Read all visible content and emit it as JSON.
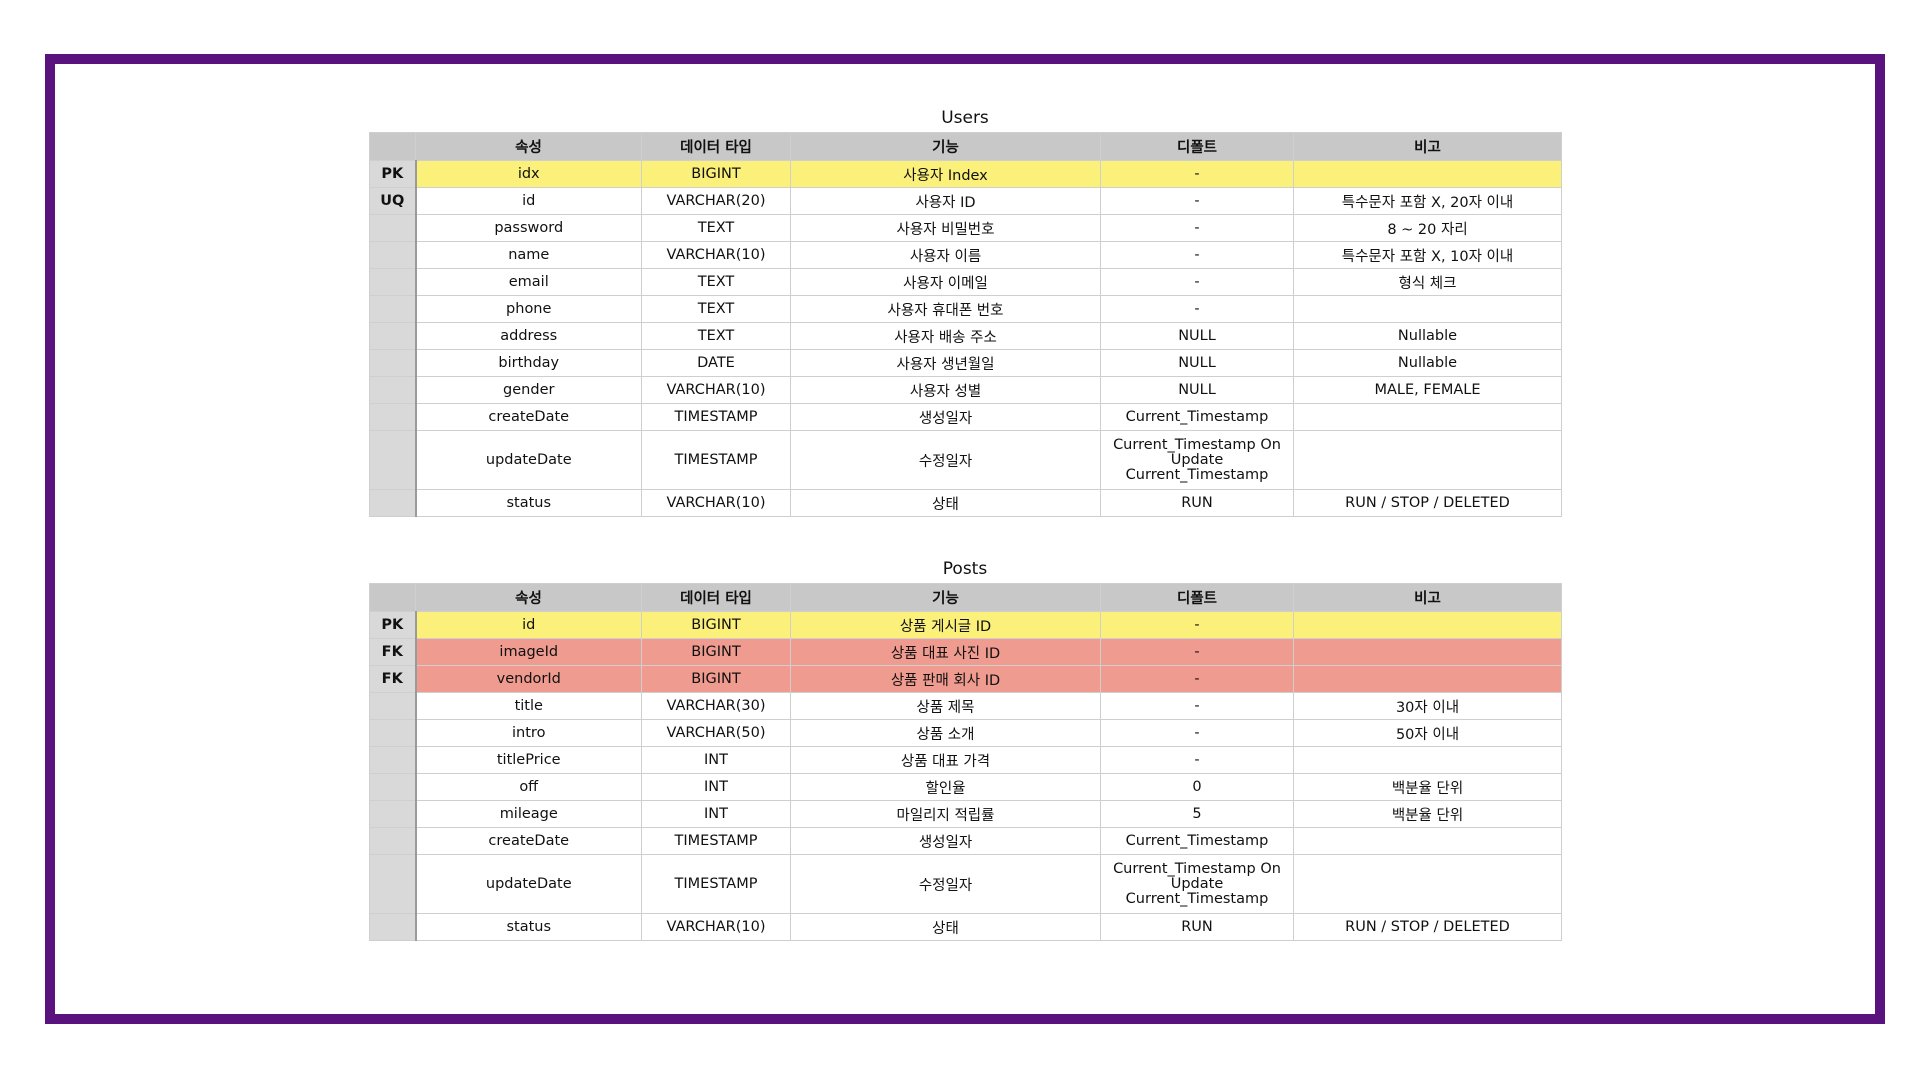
{
  "headers": [
    "속성",
    "데이터 타입",
    "기능",
    "디폴트",
    "비고"
  ],
  "users": {
    "title": "Users",
    "rows": [
      {
        "key": "PK",
        "attr": "idx",
        "type": "BIGINT",
        "func": "사용자 Index",
        "def": "-",
        "note": ""
      },
      {
        "key": "UQ",
        "attr": "id",
        "type": "VARCHAR(20)",
        "func": "사용자 ID",
        "def": "-",
        "note": "특수문자 포함 X, 20자 이내"
      },
      {
        "key": "",
        "attr": "password",
        "type": "TEXT",
        "func": "사용자 비밀번호",
        "def": "-",
        "note": "8 ~ 20 자리"
      },
      {
        "key": "",
        "attr": "name",
        "type": "VARCHAR(10)",
        "func": "사용자 이름",
        "def": "-",
        "note": "특수문자 포함 X, 10자 이내"
      },
      {
        "key": "",
        "attr": "email",
        "type": "TEXT",
        "func": "사용자 이메일",
        "def": "-",
        "note": "형식 체크"
      },
      {
        "key": "",
        "attr": "phone",
        "type": "TEXT",
        "func": "사용자 휴대폰 번호",
        "def": "-",
        "note": ""
      },
      {
        "key": "",
        "attr": "address",
        "type": "TEXT",
        "func": "사용자 배송 주소",
        "def": "NULL",
        "note": "Nullable"
      },
      {
        "key": "",
        "attr": "birthday",
        "type": "DATE",
        "func": "사용자 생년월일",
        "def": "NULL",
        "note": "Nullable"
      },
      {
        "key": "",
        "attr": "gender",
        "type": "VARCHAR(10)",
        "func": "사용자 성별",
        "def": "NULL",
        "note": "MALE, FEMALE"
      },
      {
        "key": "",
        "attr": "createDate",
        "type": "TIMESTAMP",
        "func": "생성일자",
        "def": "Current_Timestamp",
        "note": ""
      },
      {
        "key": "",
        "attr": "updateDate",
        "type": "TIMESTAMP",
        "func": "수정일자",
        "def_lines": [
          "Current_Timestamp On",
          "Update",
          "Current_Timestamp"
        ],
        "note": ""
      },
      {
        "key": "",
        "attr": "status",
        "type": "VARCHAR(10)",
        "func": "상태",
        "def": "RUN",
        "note": "RUN / STOP / DELETED"
      }
    ]
  },
  "posts": {
    "title": "Posts",
    "rows": [
      {
        "key": "PK",
        "attr": "id",
        "type": "BIGINT",
        "func": "상품 게시글 ID",
        "def": "-",
        "note": ""
      },
      {
        "key": "FK",
        "attr": "imageId",
        "type": "BIGINT",
        "func": "상품 대표 사진 ID",
        "def": "-",
        "note": ""
      },
      {
        "key": "FK",
        "attr": "vendorId",
        "type": "BIGINT",
        "func": "상품 판매 회사 ID",
        "def": "-",
        "note": ""
      },
      {
        "key": "",
        "attr": "title",
        "type": "VARCHAR(30)",
        "func": "상품 제목",
        "def": "-",
        "note": "30자 이내"
      },
      {
        "key": "",
        "attr": "intro",
        "type": "VARCHAR(50)",
        "func": "상품 소개",
        "def": "-",
        "note": "50자 이내"
      },
      {
        "key": "",
        "attr": "titlePrice",
        "type": "INT",
        "func": "상품 대표 가격",
        "def": "-",
        "note": ""
      },
      {
        "key": "",
        "attr": "off",
        "type": "INT",
        "func": "할인율",
        "def": "0",
        "note": "백분율 단위"
      },
      {
        "key": "",
        "attr": "mileage",
        "type": "INT",
        "func": "마일리지 적립률",
        "def": "5",
        "note": "백분율 단위"
      },
      {
        "key": "",
        "attr": "createDate",
        "type": "TIMESTAMP",
        "func": "생성일자",
        "def": "Current_Timestamp",
        "note": ""
      },
      {
        "key": "",
        "attr": "updateDate",
        "type": "TIMESTAMP",
        "func": "수정일자",
        "def_lines": [
          "Current_Timestamp On",
          "Update",
          "Current_Timestamp"
        ],
        "note": ""
      },
      {
        "key": "",
        "attr": "status",
        "type": "VARCHAR(10)",
        "func": "상태",
        "def": "RUN",
        "note": "RUN / STOP / DELETED"
      }
    ]
  }
}
